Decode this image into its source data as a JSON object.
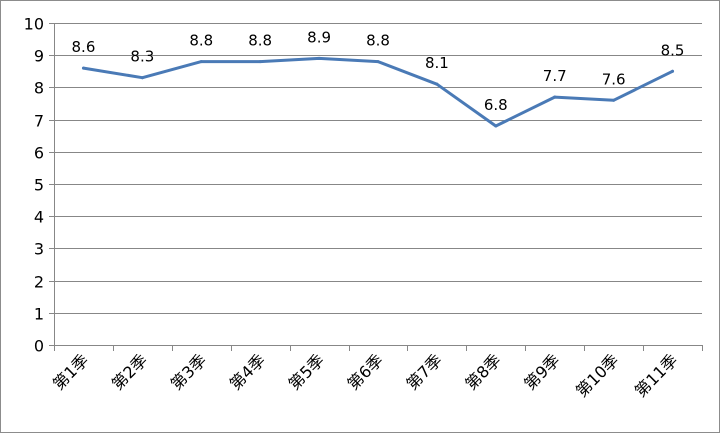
{
  "chart_data": {
    "type": "line",
    "title": "",
    "xlabel": "",
    "ylabel": "",
    "categories": [
      "第1季",
      "第2季",
      "第3季",
      "第4季",
      "第5季",
      "第6季",
      "第7季",
      "第8季",
      "第9季",
      "第10季",
      "第11季"
    ],
    "series": [
      {
        "values": [
          8.6,
          8.3,
          8.8,
          8.8,
          8.9,
          8.8,
          8.1,
          6.8,
          7.7,
          7.6,
          8.5
        ],
        "labels": [
          "8.6",
          "8.3",
          "8.8",
          "8.8",
          "8.9",
          "8.8",
          "8.1",
          "6.8",
          "7.7",
          "7.6",
          "8.5"
        ],
        "color": "#4a7ab6"
      }
    ],
    "ylim": [
      0,
      10
    ],
    "yticks": [
      "0",
      "1",
      "2",
      "3",
      "4",
      "5",
      "6",
      "7",
      "8",
      "9",
      "10"
    ],
    "grid": "horizontal",
    "legend": "none",
    "gridColor": "#878787",
    "axisColor": "#878787"
  }
}
